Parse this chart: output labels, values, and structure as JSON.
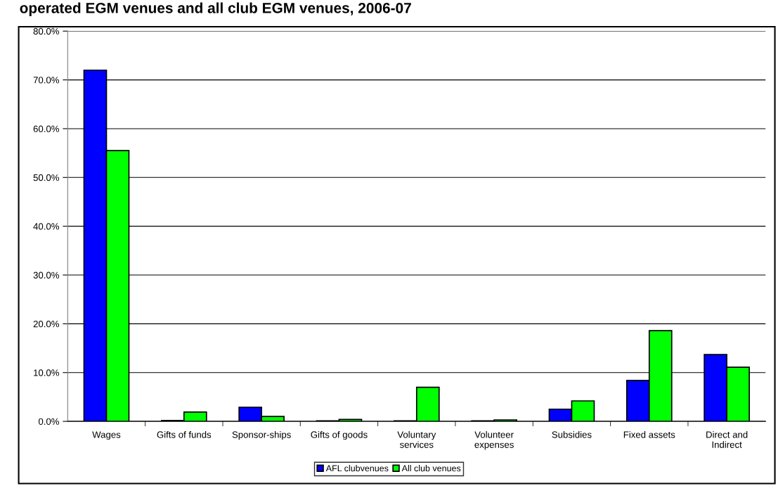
{
  "chart_data": {
    "type": "bar",
    "title": "operated EGM venues and all club EGM venues, 2006-07",
    "categories": [
      "Wages",
      "Gifts of funds",
      "Sponsor-ships",
      "Gifts of goods",
      "Voluntary\nservices",
      "Volunteer\nexpenses",
      "Subsidies",
      "Fixed assets",
      "Direct and\nIndirect"
    ],
    "series": [
      {
        "name": "AFL clubvenues",
        "color": "#0000ff",
        "values": [
          72.0,
          0.2,
          2.9,
          0.1,
          0.1,
          0.1,
          2.5,
          8.4,
          13.7
        ]
      },
      {
        "name": "All club venues",
        "color": "#00ff00",
        "values": [
          55.5,
          1.9,
          1.0,
          0.4,
          7.0,
          0.3,
          4.2,
          18.6,
          11.1
        ]
      }
    ],
    "ylim": [
      0,
      80
    ],
    "yticks": [
      {
        "value": 0,
        "label": "0.0%"
      },
      {
        "value": 10,
        "label": "10.0%"
      },
      {
        "value": 20,
        "label": "20.0%"
      },
      {
        "value": 30,
        "label": "30.0%"
      },
      {
        "value": 40,
        "label": "40.0%"
      },
      {
        "value": 50,
        "label": "50.0%"
      },
      {
        "value": 60,
        "label": "60.0%"
      },
      {
        "value": 70,
        "label": "70.0%"
      },
      {
        "value": 80,
        "label": "80.0%"
      }
    ],
    "grid": "y",
    "legend": "bottom"
  }
}
